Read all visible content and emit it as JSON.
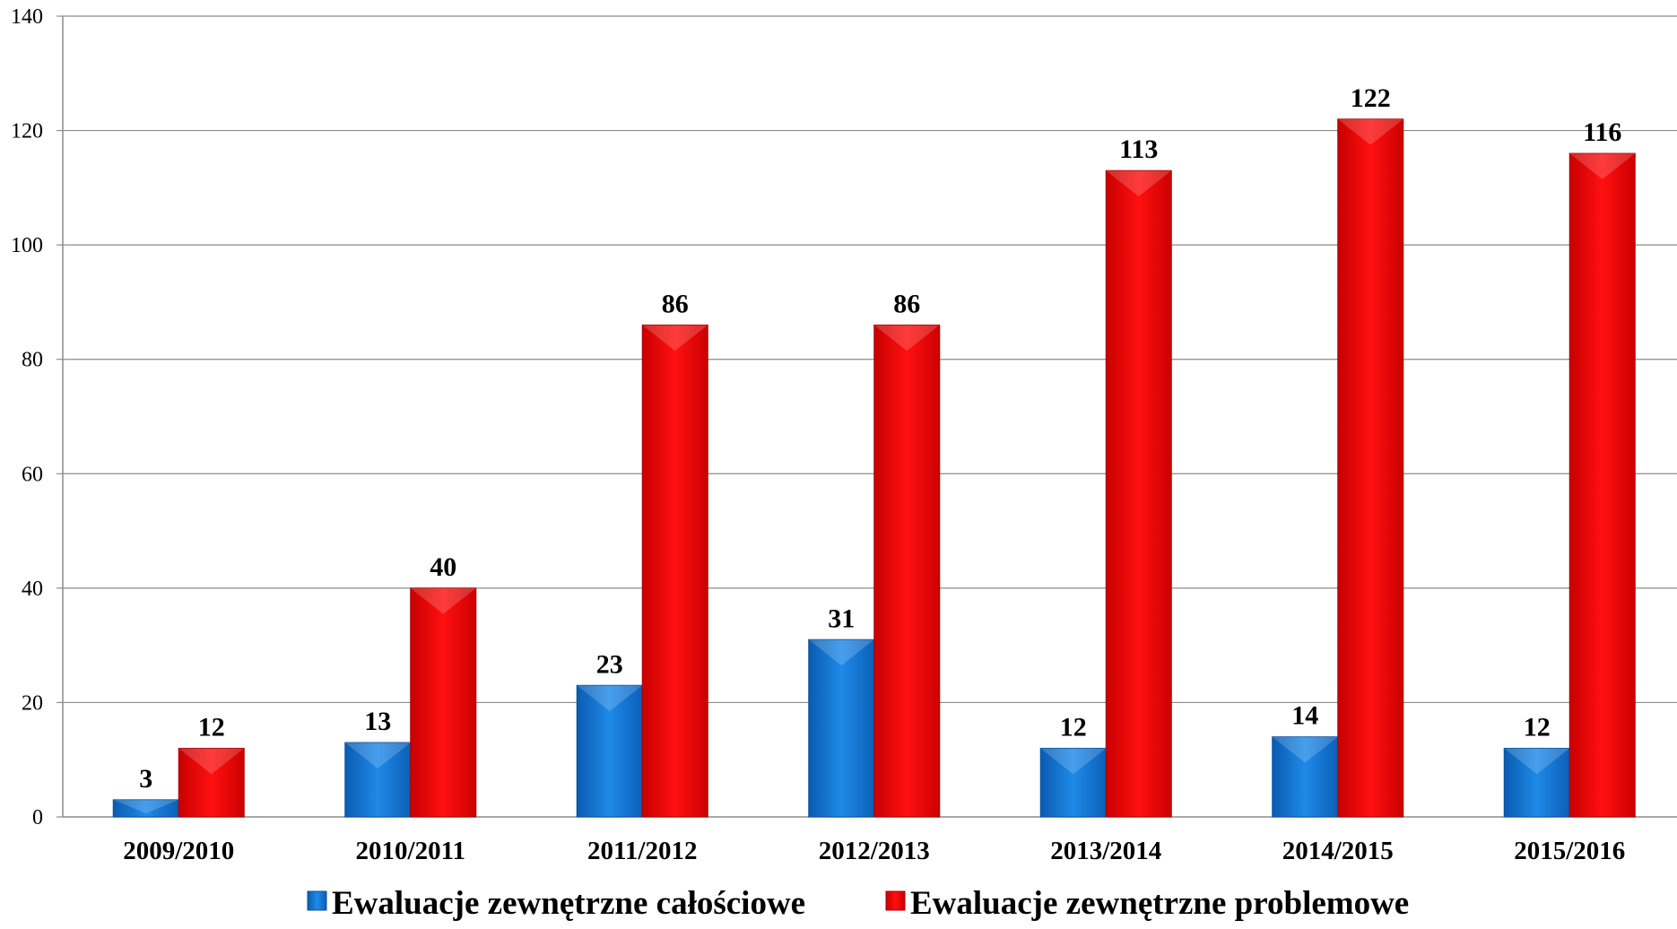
{
  "chart_data": {
    "type": "bar",
    "categories": [
      "2009/2010",
      "2010/2011",
      "2011/2012",
      "2012/2013",
      "2013/2014",
      "2014/2015",
      "2015/2016"
    ],
    "series": [
      {
        "name": "Ewaluacje zewnętrzne całościowe",
        "values": [
          3,
          13,
          23,
          31,
          12,
          14,
          12
        ],
        "color": "#1a7fd8"
      },
      {
        "name": "Ewaluacje zewnętrzne problemowe",
        "values": [
          12,
          40,
          86,
          86,
          113,
          122,
          116
        ],
        "color": "#f20000"
      }
    ],
    "ylim": [
      0,
      140
    ],
    "yticks": [
      0,
      20,
      40,
      60,
      80,
      100,
      120,
      140
    ],
    "ytick_labels": [
      "0",
      "20",
      "40",
      "60",
      "80",
      "100",
      "120",
      "140"
    ],
    "grid": true,
    "legend_position": "bottom",
    "data_labels": true
  }
}
